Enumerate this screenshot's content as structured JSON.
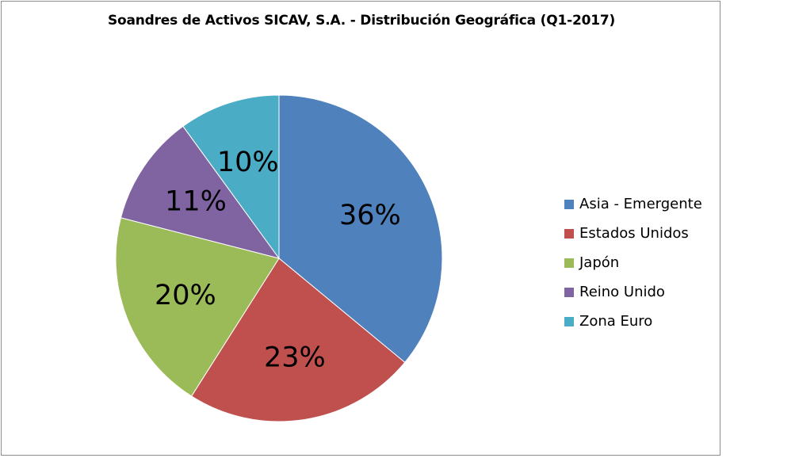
{
  "chart_data": {
    "type": "pie",
    "title": "Soandres de Activos SICAV, S.A. - Distribución Geográfica (Q1-2017)",
    "categories": [
      "Asia - Emergente",
      "Estados Unidos",
      "Japón",
      "Reino Unido",
      "Zona Euro"
    ],
    "values": [
      36,
      23,
      20,
      11,
      10
    ],
    "data_labels": [
      "36%",
      "23%",
      "20%",
      "11%",
      "10%"
    ],
    "colors": [
      "#4f81bd",
      "#c0504d",
      "#9bbb59",
      "#8064a2",
      "#4bacc6"
    ],
    "legend_position": "right"
  }
}
